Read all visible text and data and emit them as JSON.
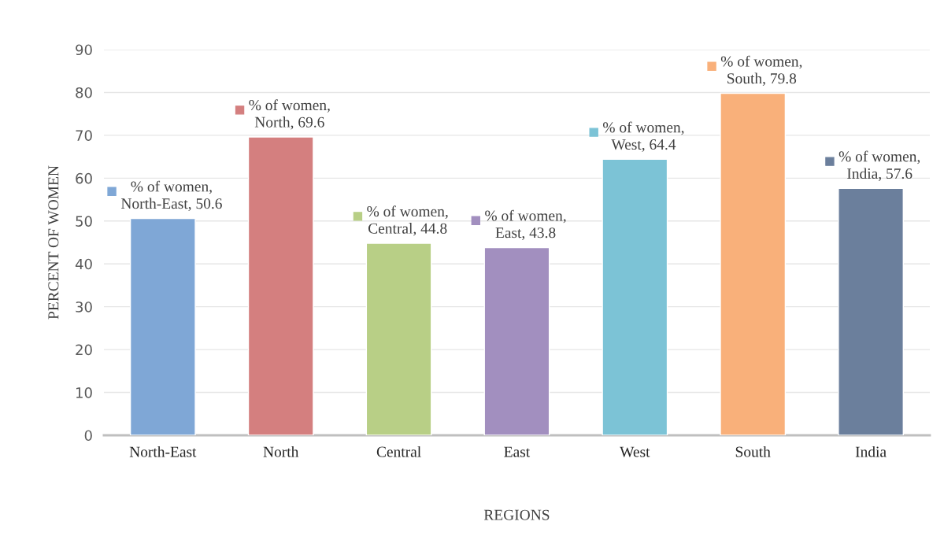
{
  "chart_data": {
    "type": "bar",
    "categories": [
      "North-East",
      "North",
      "Central",
      "East",
      "West",
      "South",
      "India"
    ],
    "values": [
      50.6,
      69.6,
      44.8,
      43.8,
      64.4,
      79.8,
      57.6
    ],
    "colors": [
      "#7fa7d6",
      "#d47f7f",
      "#b8cf86",
      "#a28fbf",
      "#7cc3d6",
      "#f9b07a",
      "#6b7f9c"
    ],
    "value_labels": [
      "% of women, North-East, 50.6",
      "% of women, North, 69.6",
      "% of women, Central, 44.8",
      "% of women, East, 43.8",
      "% of women, West, 64.4",
      "% of women, South, 79.8",
      "% of women, India, 57.6"
    ],
    "xlabel": "REGIONS",
    "ylabel": "PERCENT OF WOMEN",
    "ylim": [
      0,
      90
    ],
    "yticks": [
      0,
      10,
      20,
      30,
      40,
      50,
      60,
      70,
      80,
      90
    ],
    "grid": "y",
    "legend": false
  }
}
